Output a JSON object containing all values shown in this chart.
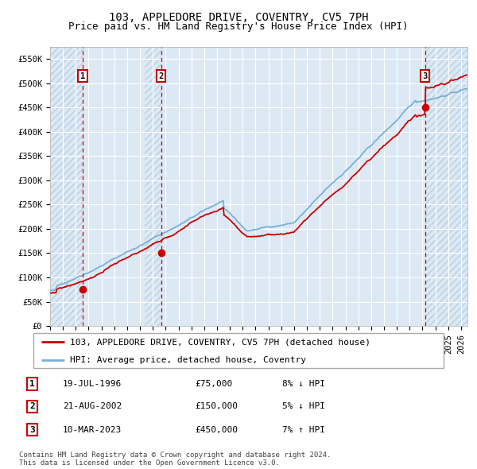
{
  "title": "103, APPLEDORE DRIVE, COVENTRY, CV5 7PH",
  "subtitle": "Price paid vs. HM Land Registry's House Price Index (HPI)",
  "ylim": [
    0,
    575000
  ],
  "yticks": [
    0,
    50000,
    100000,
    150000,
    200000,
    250000,
    300000,
    350000,
    400000,
    450000,
    500000,
    550000
  ],
  "ytick_labels": [
    "£0",
    "£50K",
    "£100K",
    "£150K",
    "£200K",
    "£250K",
    "£300K",
    "£350K",
    "£400K",
    "£450K",
    "£500K",
    "£550K"
  ],
  "xlim_start": 1994.0,
  "xlim_end": 2026.5,
  "background_color": "#ffffff",
  "plot_bg_color": "#dce9f5",
  "hatch_color": "#b8cfe0",
  "grid_color": "#ffffff",
  "sale_points": [
    {
      "date_num": 1996.54,
      "price": 75000,
      "label": "1"
    },
    {
      "date_num": 2002.64,
      "price": 150000,
      "label": "2"
    },
    {
      "date_num": 2023.19,
      "price": 450000,
      "label": "3"
    }
  ],
  "vline_color": "#cc0000",
  "sale_marker_color": "#cc0000",
  "hpi_line_color": "#7ab0d4",
  "price_line_color": "#cc0000",
  "legend_entries": [
    "103, APPLEDORE DRIVE, COVENTRY, CV5 7PH (detached house)",
    "HPI: Average price, detached house, Coventry"
  ],
  "table_rows": [
    {
      "num": "1",
      "date": "19-JUL-1996",
      "price": "£75,000",
      "hpi": "8% ↓ HPI"
    },
    {
      "num": "2",
      "date": "21-AUG-2002",
      "price": "£150,000",
      "hpi": "5% ↓ HPI"
    },
    {
      "num": "3",
      "date": "10-MAR-2023",
      "price": "£450,000",
      "hpi": "7% ↑ HPI"
    }
  ],
  "footer": "Contains HM Land Registry data © Crown copyright and database right 2024.\nThis data is licensed under the Open Government Licence v3.0.",
  "title_fontsize": 10,
  "subtitle_fontsize": 9,
  "tick_fontsize": 7.5,
  "legend_fontsize": 8,
  "table_fontsize": 8,
  "footer_fontsize": 6.5
}
